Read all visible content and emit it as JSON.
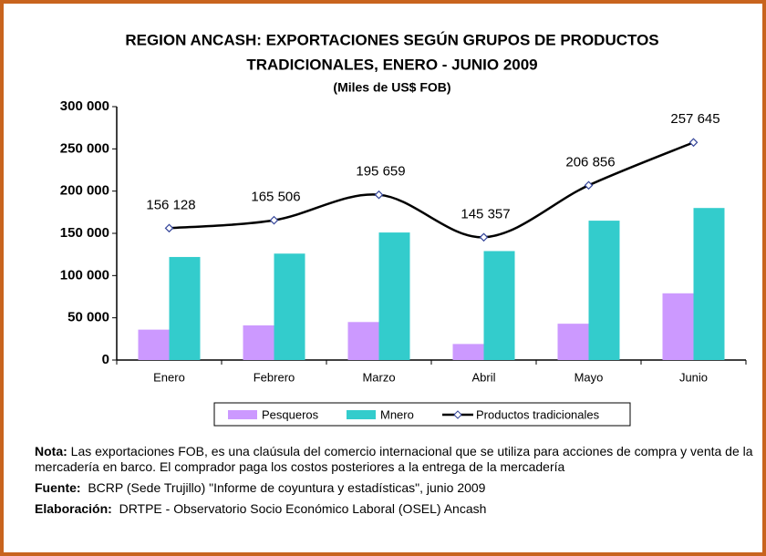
{
  "chart_data": {
    "type": "bar-line",
    "title": "REGION ANCASH: EXPORTACIONES SEGÚN GRUPOS DE PRODUCTOS",
    "title_line2": "TRADICIONALES, ENERO - JUNIO 2009",
    "subtitle": "(Miles de US$ FOB)",
    "categories": [
      "Enero",
      "Febrero",
      "Marzo",
      "Abril",
      "Mayo",
      "Junio"
    ],
    "series": [
      {
        "name": "Pesqueros",
        "color": "#cc99ff",
        "kind": "bar",
        "values": [
          36000,
          41000,
          45000,
          19000,
          43000,
          79000
        ]
      },
      {
        "name": "Mnero",
        "color": "#33cccc",
        "kind": "bar",
        "values": [
          122000,
          126000,
          151000,
          129000,
          165000,
          180000
        ]
      },
      {
        "name": "Productos tradicionales",
        "color": "#000000",
        "kind": "line",
        "values": [
          156128,
          165506,
          195659,
          145357,
          206856,
          257645
        ],
        "value_labels": [
          "156 128",
          "165 506",
          "195 659",
          "145 357",
          "206 856",
          "257 645"
        ]
      }
    ],
    "ylim": [
      0,
      300000
    ],
    "yticks": [
      0,
      {
        "value": 50000,
        "label": "50 000"
      },
      {
        "value": 100000,
        "label": "100 000"
      },
      {
        "value": 150000,
        "label": "150 000"
      },
      {
        "value": 200000,
        "label": "200 000"
      },
      {
        "value": 250000,
        "label": "250 000"
      },
      {
        "value": 300000,
        "label": "300 000"
      }
    ],
    "grid": false,
    "legend": "bottom"
  },
  "notes": {
    "nota_label": "Nota:",
    "nota_text": "Las exportaciones FOB, es una claúsula del comercio internacional que se utiliza para acciones de compra y venta de la mercadería en barco. El comprador paga los costos posteriores a la entrega de la mercadería",
    "fuente_label": "Fuente:",
    "fuente_text": "BCRP (Sede Trujillo) \"Informe de coyuntura y estadísticas\", junio 2009",
    "elaboracion_label": "Elaboración:",
    "elaboracion_text": "DRTPE - Observatorio Socio Económico Laboral (OSEL) Ancash"
  }
}
